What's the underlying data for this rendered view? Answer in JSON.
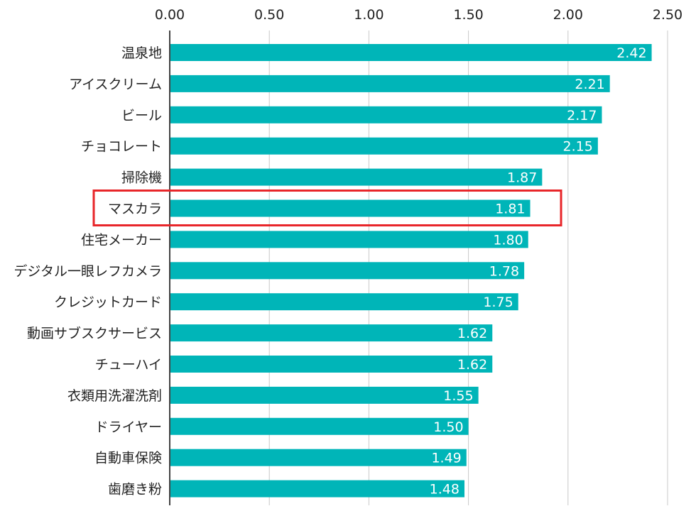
{
  "chart_data": {
    "type": "bar",
    "orientation": "horizontal",
    "title": "",
    "xlabel": "",
    "ylabel": "",
    "xlim": [
      0,
      2.5
    ],
    "x_ticks": [
      "0.00",
      "0.50",
      "1.00",
      "1.50",
      "2.00",
      "2.50"
    ],
    "x_axis_position": "top",
    "grid": true,
    "legend": "none",
    "bar_color": "#00b5b8",
    "highlight_color": "#e8262a",
    "highlighted_category": "マスカラ",
    "categories": [
      "温泉地",
      "アイスクリーム",
      "ビール",
      "チョコレート",
      "掃除機",
      "マスカラ",
      "住宅メーカー",
      "デジタル一眼レフカメラ",
      "クレジットカード",
      "動画サブスクサービス",
      "チューハイ",
      "衣類用洗濯洗剤",
      "ドライヤー",
      "自動車保険",
      "歯磨き粉"
    ],
    "values": [
      2.42,
      2.21,
      2.17,
      2.15,
      1.87,
      1.81,
      1.8,
      1.78,
      1.75,
      1.62,
      1.62,
      1.55,
      1.5,
      1.49,
      1.48
    ],
    "value_labels": [
      "2.42",
      "2.21",
      "2.17",
      "2.15",
      "1.87",
      "1.81",
      "1.80",
      "1.78",
      "1.75",
      "1.62",
      "1.62",
      "1.55",
      "1.50",
      "1.49",
      "1.48"
    ]
  }
}
